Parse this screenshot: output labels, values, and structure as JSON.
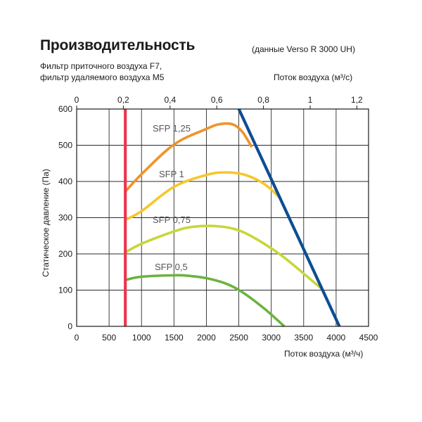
{
  "header": {
    "title": "Производительность",
    "subtitle": "(данные Verso R 3000 UH)",
    "note_line1": "Фильтр приточного воздуха F7,",
    "note_line2": "фильтр удаляемого воздуха M5"
  },
  "chart_data": {
    "type": "line",
    "title": "Производительность",
    "xlabel": "Поток воздуха (м³/ч)",
    "ylabel": "Статическое давление (Па)",
    "x2label": "Поток воздуха (м³/с)",
    "xlim": [
      0,
      4500
    ],
    "ylim": [
      0,
      600
    ],
    "x2lim": [
      0,
      1.25
    ],
    "x_ticks": [
      "0",
      "500",
      "1000",
      "1500",
      "2000",
      "2500",
      "3000",
      "3500",
      "4000",
      "4500"
    ],
    "y_ticks": [
      "0",
      "100",
      "200",
      "300",
      "400",
      "500",
      "600"
    ],
    "x2_ticks": [
      "0",
      "0,2",
      "0,4",
      "0,6",
      "0,8",
      "1",
      "1,2"
    ],
    "grid": true,
    "series": [
      {
        "name": "SFP 1,25",
        "color": "#F0922B",
        "x": [
          750,
          1000,
          1500,
          2000,
          2200,
          2400,
          2550,
          2700
        ],
        "y": [
          372,
          420,
          502,
          545,
          558,
          558,
          538,
          495
        ]
      },
      {
        "name": "SFP 1",
        "color": "#F7C62B",
        "x": [
          750,
          1000,
          1500,
          2000,
          2300,
          2600,
          2900,
          3150
        ],
        "y": [
          294,
          318,
          385,
          418,
          425,
          418,
          392,
          352
        ]
      },
      {
        "name": "SFP 0,75",
        "color": "#C7D63A",
        "x": [
          750,
          1000,
          1500,
          1800,
          2200,
          2500,
          2800,
          3200,
          3800
        ],
        "y": [
          204,
          228,
          262,
          275,
          276,
          265,
          238,
          190,
          100
        ]
      },
      {
        "name": "SFP 0,5",
        "color": "#6CB33F",
        "x": [
          750,
          1000,
          1500,
          1700,
          2000,
          2300,
          2550,
          2900,
          3200
        ],
        "y": [
          128,
          137,
          141,
          140,
          133,
          118,
          95,
          48,
          0
        ]
      },
      {
        "name": "",
        "color": "#E8384F",
        "x": [
          750,
          750
        ],
        "y": [
          0,
          600
        ]
      },
      {
        "name": "",
        "color": "#0E4D92",
        "x": [
          2500,
          4050
        ],
        "y": [
          600,
          0
        ]
      }
    ]
  }
}
